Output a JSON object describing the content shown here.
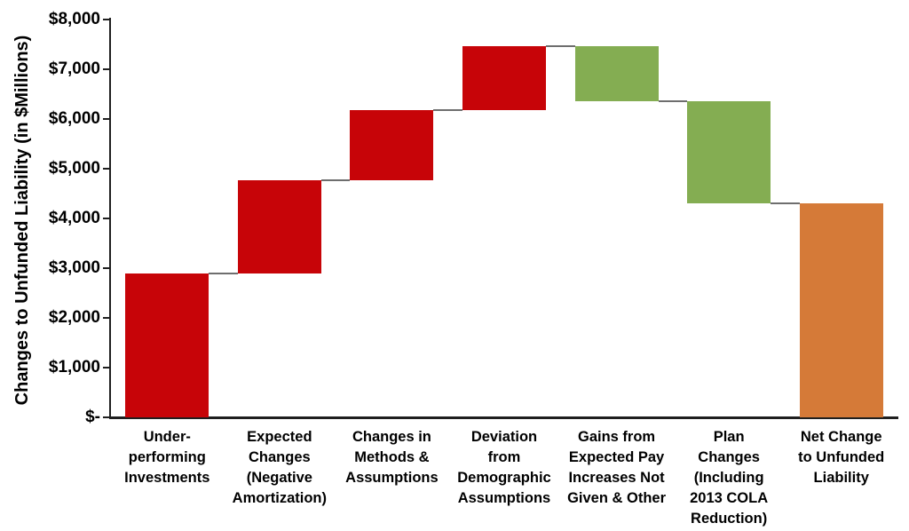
{
  "chart_data": {
    "type": "waterfall",
    "title": "",
    "xlabel": "",
    "ylabel": "Changes to Unfunded Liability (in $Millions)",
    "ylim": [
      0,
      8000
    ],
    "y_tick_interval": 1000,
    "y_tick_labels": [
      "$8,000",
      "$7,000",
      "$6,000",
      "$5,000",
      "$4,000",
      "$3,000",
      "$2,000",
      "$1,000",
      "$-"
    ],
    "grid": "off",
    "legend": "none",
    "categories": [
      "Under-performing Investments",
      "Expected Changes (Negative Amortization)",
      "Changes in Methods & Assumptions",
      "Deviation from Demographic Assumptions",
      "Gains from Expected Pay Increases Not Given & Other",
      "Plan Changes (Including 2013 COLA Reduction)",
      "Net Change to Unfunded Liability"
    ],
    "category_lines": [
      [
        "Under-",
        "performing",
        "Investments"
      ],
      [
        "Expected",
        "Changes",
        "(Negative",
        "Amortization)"
      ],
      [
        "Changes in",
        "Methods &",
        "Assumptions"
      ],
      [
        "Deviation",
        "from",
        "Demographic",
        "Assumptions"
      ],
      [
        "Gains from",
        "Expected Pay",
        "Increases Not",
        "Given & Other"
      ],
      [
        "Plan",
        "Changes",
        "(Including",
        "2013 COLA",
        "Reduction)"
      ],
      [
        "Net Change",
        "to Unfunded",
        "Liability"
      ]
    ],
    "steps": [
      {
        "label": "Under-performing Investments",
        "start": 0,
        "end": 2900,
        "delta": 2900,
        "role": "increase"
      },
      {
        "label": "Expected Changes (Negative Amortization)",
        "start": 2900,
        "end": 4770,
        "delta": 1870,
        "role": "increase"
      },
      {
        "label": "Changes in Methods & Assumptions",
        "start": 4770,
        "end": 6180,
        "delta": 1410,
        "role": "increase"
      },
      {
        "label": "Deviation from Demographic Assumptions",
        "start": 6180,
        "end": 7460,
        "delta": 1280,
        "role": "increase"
      },
      {
        "label": "Gains from Expected Pay Increases Not Given & Other",
        "start": 7460,
        "end": 6360,
        "delta": -1100,
        "role": "decrease"
      },
      {
        "label": "Plan Changes (Including 2013 COLA Reduction)",
        "start": 6360,
        "end": 4310,
        "delta": -2050,
        "role": "decrease"
      },
      {
        "label": "Net Change to Unfunded Liability",
        "start": 0,
        "end": 4310,
        "delta": 4310,
        "role": "total"
      }
    ],
    "colors": {
      "increase": "#C70408",
      "decrease": "#84AD52",
      "total": "#D57A38",
      "connector": "#6e6e6e",
      "axis": "#1f1f1f"
    }
  }
}
